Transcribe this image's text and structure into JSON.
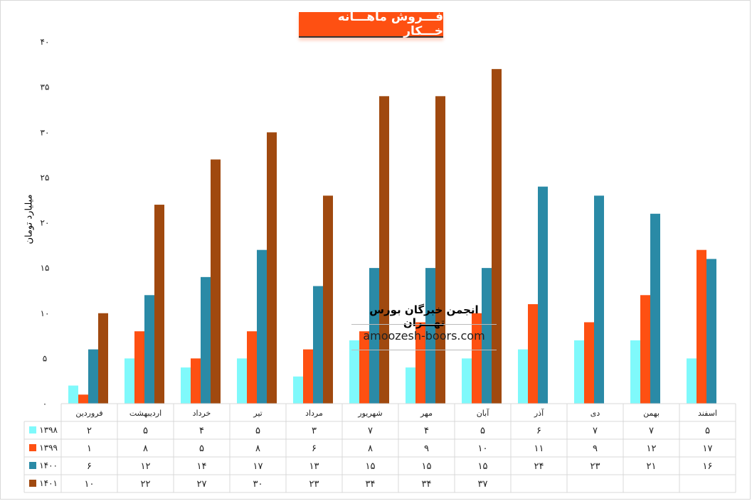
{
  "chart_data": {
    "type": "bar",
    "title": "فـــروش ماهـــانه خـــکار",
    "ylabel": "میلیارد تومان",
    "xlabel": "",
    "ylim": [
      0,
      40
    ],
    "yticks": [
      0,
      5,
      10,
      15,
      20,
      25,
      30,
      35,
      40
    ],
    "categories": [
      "فروردین",
      "اردیبهشت",
      "خرداد",
      "تیر",
      "مرداد",
      "شهریور",
      "مهر",
      "آبان",
      "آذر",
      "دی",
      "بهمن",
      "اسفند"
    ],
    "series": [
      {
        "name": "۱۳۹۸",
        "color": "#7ff9fb",
        "values": [
          2,
          5,
          4,
          5,
          3,
          7,
          4,
          5,
          6,
          7,
          7,
          5
        ]
      },
      {
        "name": "۱۳۹۹",
        "color": "#fe5012",
        "values": [
          1,
          8,
          5,
          8,
          6,
          8,
          9,
          10,
          11,
          9,
          12,
          17
        ]
      },
      {
        "name": "۱۴۰۰",
        "color": "#2a8aa6",
        "values": [
          6,
          12,
          14,
          17,
          13,
          15,
          15,
          15,
          24,
          23,
          21,
          16
        ]
      },
      {
        "name": "۱۴۰۱",
        "color": "#a0490f",
        "values": [
          10,
          22,
          27,
          30,
          23,
          34,
          34,
          37,
          null,
          null,
          null,
          null
        ]
      }
    ],
    "legend": "data-table-left",
    "grid": false
  },
  "watermark": {
    "name": "انجمن خبرگان بورس تهـــران",
    "url": "amoozesh-boors.com"
  }
}
